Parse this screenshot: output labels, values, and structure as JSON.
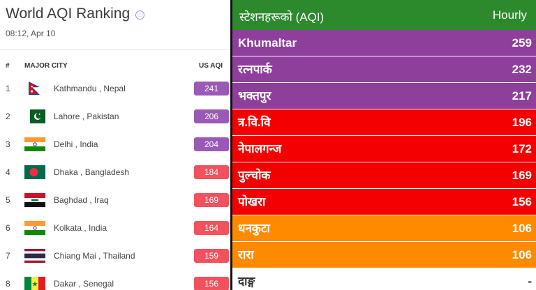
{
  "ranking": {
    "title": "World AQI Ranking",
    "info_icon": "ⓘ",
    "timestamp": "08:12, Apr 10",
    "headers": {
      "rank": "#",
      "city": "MAJOR CITY",
      "aqi": "US AQI"
    },
    "rows": [
      {
        "rank": "1",
        "city": "Kathmandu , Nepal",
        "aqi": "241",
        "flag": "nepal-flag-icon",
        "color": "#9b59b6"
      },
      {
        "rank": "2",
        "city": "Lahore , Pakistan",
        "aqi": "206",
        "flag": "pakistan-flag-icon",
        "color": "#9b59b6"
      },
      {
        "rank": "3",
        "city": "Delhi , India",
        "aqi": "204",
        "flag": "india-flag-icon",
        "color": "#9b59b6"
      },
      {
        "rank": "4",
        "city": "Dhaka , Bangladesh",
        "aqi": "184",
        "flag": "bangladesh-flag-icon",
        "color": "#f0525e"
      },
      {
        "rank": "5",
        "city": "Baghdad , Iraq",
        "aqi": "169",
        "flag": "iraq-flag-icon",
        "color": "#f0525e"
      },
      {
        "rank": "6",
        "city": "Kolkata , India",
        "aqi": "164",
        "flag": "india-flag-icon",
        "color": "#f0525e"
      },
      {
        "rank": "7",
        "city": "Chiang Mai , Thailand",
        "aqi": "159",
        "flag": "thailand-flag-icon",
        "color": "#f0525e"
      },
      {
        "rank": "8",
        "city": "Dakar , Senegal",
        "aqi": "156",
        "flag": "senegal-flag-icon",
        "color": "#f0525e"
      }
    ]
  },
  "stations": {
    "header_left": "स्टेशनहरूको (AQI)",
    "header_right": "Hourly",
    "header_color": "#2c8a2c",
    "rows": [
      {
        "name": "Khumaltar",
        "value": "259",
        "color": "#8e3f9c"
      },
      {
        "name": "रत्नपार्क",
        "value": "232",
        "color": "#8e3f9c"
      },
      {
        "name": "भक्तपुर",
        "value": "217",
        "color": "#8e3f9c"
      },
      {
        "name": "त्र.वि.वि",
        "value": "196",
        "color": "#f50000"
      },
      {
        "name": "नेपालगन्ज",
        "value": "172",
        "color": "#f50000"
      },
      {
        "name": "पुल्चोक",
        "value": "169",
        "color": "#f50000"
      },
      {
        "name": "पोखरा",
        "value": "156",
        "color": "#f50000"
      },
      {
        "name": "धनकुटा",
        "value": "106",
        "color": "#ff8a00"
      },
      {
        "name": "रारा",
        "value": "106",
        "color": "#ff8a00"
      },
      {
        "name": "दाङ्ग",
        "value": "-",
        "color": "#ffffff"
      }
    ]
  }
}
